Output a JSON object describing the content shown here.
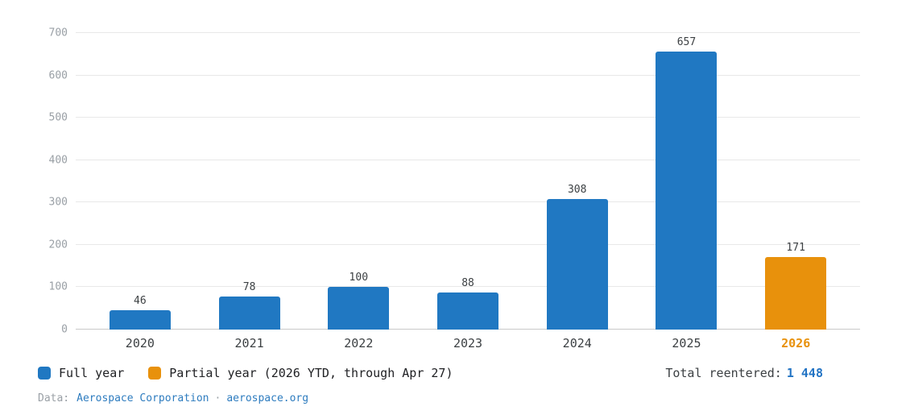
{
  "chart_data": {
    "type": "bar",
    "title": "",
    "xlabel": "",
    "ylabel": "",
    "ylim": [
      0,
      700
    ],
    "yticks": [
      0,
      100,
      200,
      300,
      400,
      500,
      600,
      700
    ],
    "grid": true,
    "legend_position": "bottom-left",
    "categories": [
      "2020",
      "2021",
      "2022",
      "2023",
      "2024",
      "2025",
      "2026"
    ],
    "values": [
      46,
      78,
      100,
      88,
      308,
      657,
      171
    ],
    "bars": [
      {
        "year": "2020",
        "value": 46,
        "series": "Full year",
        "color": "#2078c2",
        "highlight": false
      },
      {
        "year": "2021",
        "value": 78,
        "series": "Full year",
        "color": "#2078c2",
        "highlight": false
      },
      {
        "year": "2022",
        "value": 100,
        "series": "Full year",
        "color": "#2078c2",
        "highlight": false
      },
      {
        "year": "2023",
        "value": 88,
        "series": "Full year",
        "color": "#2078c2",
        "highlight": false
      },
      {
        "year": "2024",
        "value": 308,
        "series": "Full year",
        "color": "#2078c2",
        "highlight": false
      },
      {
        "year": "2025",
        "value": 657,
        "series": "Full year",
        "color": "#2078c2",
        "highlight": false
      },
      {
        "year": "2026",
        "value": 171,
        "series": "Partial year (2026 YTD, through Apr 27)",
        "color": "#e8910c",
        "highlight": true
      }
    ]
  },
  "legend": {
    "items": [
      {
        "label": "Full year",
        "color": "#2078c2"
      },
      {
        "label": "Partial year (2026 YTD, through Apr 27)",
        "color": "#e8910c"
      }
    ]
  },
  "summary": {
    "label": "Total reentered:",
    "value": "1 448"
  },
  "footer": {
    "prefix": "Data:",
    "source_link": "Aerospace Corporation",
    "separator": "·",
    "site_link": "aerospace.org"
  },
  "colors": {
    "full_year": "#2078c2",
    "partial_year": "#e8910c",
    "link": "#2e7cbf",
    "grid": "#e8e8e8",
    "axis": "#c9c9c9",
    "tick_text": "#9aa0a6",
    "label_text": "#3c4043"
  }
}
